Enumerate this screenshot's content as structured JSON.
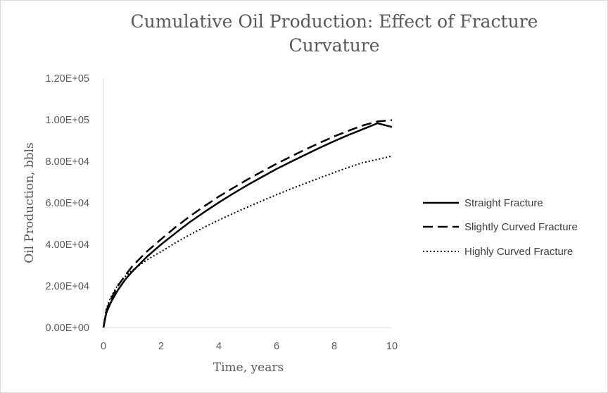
{
  "chart_data": {
    "type": "line",
    "title_lines": [
      "Cumulative Oil Production: Effect of Fracture",
      "Curvature"
    ],
    "xlabel": "Time, years",
    "ylabel": "Oil Production, bbls",
    "xlim": [
      0,
      10
    ],
    "ylim": [
      0,
      120000
    ],
    "x_ticks": [
      0,
      2,
      4,
      6,
      8,
      10
    ],
    "x_tick_labels": [
      "0",
      "2",
      "4",
      "6",
      "8",
      "10"
    ],
    "y_ticks": [
      0,
      20000,
      40000,
      60000,
      80000,
      100000,
      120000
    ],
    "y_tick_labels": [
      "0.00E+00",
      "2.00E+04",
      "4.00E+04",
      "6.00E+04",
      "8.00E+04",
      "1.00E+05",
      "1.20E+05"
    ],
    "grid": false,
    "legend_position": "right",
    "x": [
      0,
      0.1,
      0.25,
      0.5,
      0.75,
      1,
      1.5,
      2,
      2.5,
      3,
      3.5,
      4,
      4.5,
      5,
      5.5,
      6,
      6.5,
      7,
      7.5,
      8,
      8.5,
      9,
      9.5,
      10
    ],
    "series": [
      {
        "name": "Straight Fracture",
        "style": "solid",
        "color": "#000000",
        "values": [
          0,
          7000,
          12000,
          18000,
          23000,
          27000,
          34000,
          40000,
          45500,
          50800,
          55600,
          60200,
          64500,
          68600,
          72500,
          76300,
          79800,
          83200,
          86500,
          89700,
          92700,
          95500,
          98300,
          96500
        ]
      },
      {
        "name": "Slightly Curved Fracture",
        "style": "dashed",
        "color": "#000000",
        "values": [
          0,
          8000,
          13500,
          20000,
          25000,
          29500,
          36500,
          42500,
          48300,
          53600,
          58400,
          63000,
          67200,
          71300,
          75100,
          78800,
          82300,
          85700,
          88900,
          92000,
          94700,
          97300,
          99200,
          99800
        ]
      },
      {
        "name": "Highly Curved Fracture",
        "style": "dotted",
        "color": "#000000",
        "values": [
          0,
          9000,
          14500,
          20500,
          24500,
          27500,
          32500,
          36500,
          40800,
          44700,
          48300,
          51700,
          54900,
          58000,
          61000,
          63900,
          66700,
          69400,
          72000,
          74600,
          77100,
          79400,
          80900,
          82500
        ]
      }
    ]
  }
}
